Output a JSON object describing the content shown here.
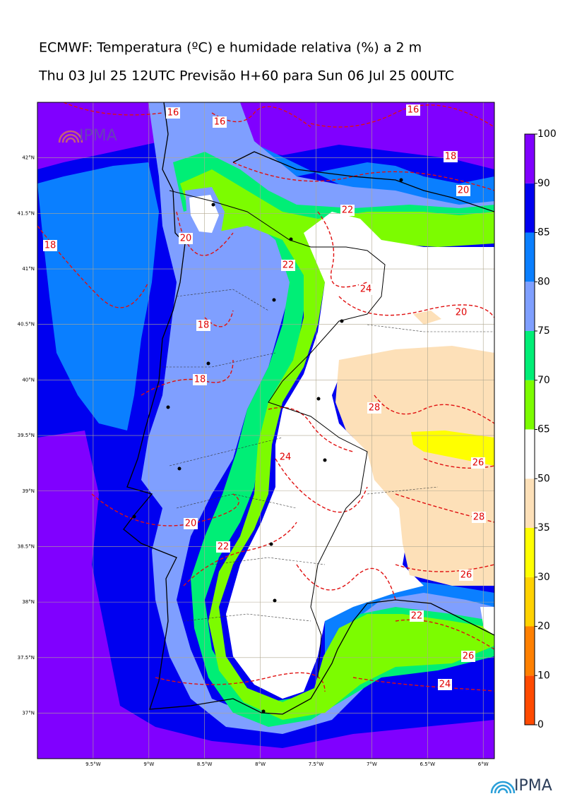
{
  "title": "ECMWF: Temperatura (ºC) e humidade relativa (%) a 2 m",
  "subtitle": "Thu 03 Jul 25 12UTC Previsão H+60 para Sun 06 Jul 25 00UTC",
  "map": {
    "lon_range": [
      -10,
      -5.9
    ],
    "lat_range": [
      36.59,
      42.5
    ],
    "lat_ticks": [
      {
        "value": 42,
        "label": "42°N"
      },
      {
        "value": 41.5,
        "label": "41.5°N"
      },
      {
        "value": 41,
        "label": "41°N"
      },
      {
        "value": 40.5,
        "label": "40.5°N"
      },
      {
        "value": 40,
        "label": "40°N"
      },
      {
        "value": 39.5,
        "label": "39.5°N"
      },
      {
        "value": 39,
        "label": "39°N"
      },
      {
        "value": 38.5,
        "label": "38.5°N"
      },
      {
        "value": 38,
        "label": "38°N"
      },
      {
        "value": 37.5,
        "label": "37.5°N"
      },
      {
        "value": 37,
        "label": "37°N"
      }
    ],
    "lon_ticks": [
      {
        "value": -9.5,
        "label": "9.5°W"
      },
      {
        "value": -9,
        "label": "9°W"
      },
      {
        "value": -8.5,
        "label": "8.5°W"
      },
      {
        "value": -8,
        "label": "8°W"
      },
      {
        "value": -7.5,
        "label": "7.5°W"
      },
      {
        "value": -7,
        "label": "7°W"
      },
      {
        "value": -6.5,
        "label": "6.5°W"
      },
      {
        "value": -6,
        "label": "6°W"
      }
    ],
    "contour_labels": [
      16,
      16,
      16,
      18,
      20,
      22,
      20,
      22,
      24,
      18,
      18,
      20,
      18,
      28,
      24,
      26,
      20,
      28,
      22,
      26,
      22,
      26,
      24
    ],
    "watermark": "IPMA"
  },
  "colorbar": {
    "levels": [
      0,
      10,
      20,
      30,
      35,
      50,
      65,
      70,
      75,
      80,
      85,
      90,
      100
    ],
    "colors": [
      "#ff4a00",
      "#ff8000",
      "#ffd200",
      "#ffff00",
      "#fde0b8",
      "#ffffff",
      "#7cfc00",
      "#00ee76",
      "#7f9fff",
      "#0a7fff",
      "#0000f0",
      "#8000ff"
    ]
  },
  "logo": "IPMA"
}
